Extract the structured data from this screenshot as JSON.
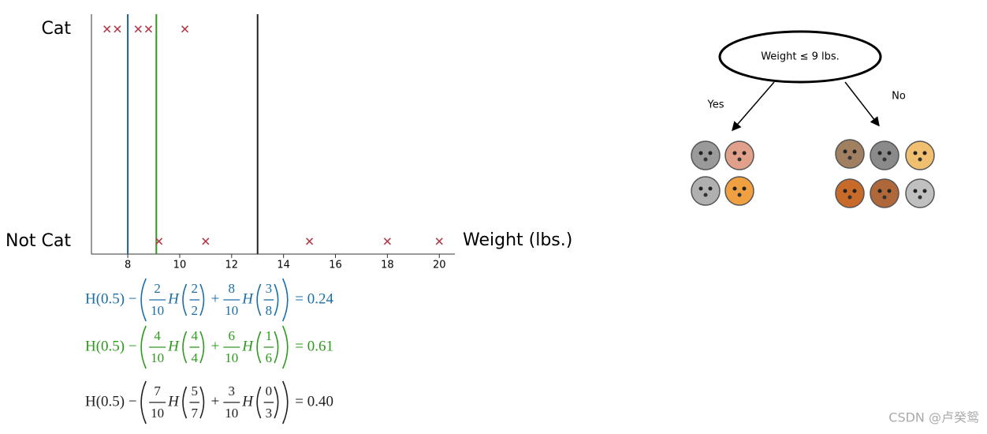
{
  "chart_data": {
    "type": "scatter",
    "x_label": "Weight (lbs.)",
    "x": [
      7.2,
      7.6,
      8.4,
      8.8,
      10.2,
      9.2,
      11.0,
      15.0,
      18.0,
      20.0
    ],
    "values": [
      1,
      1,
      1,
      1,
      1,
      0,
      0,
      0,
      0,
      0
    ],
    "color": "#b03a48",
    "xlim": [
      6.6,
      20.6
    ],
    "xticks": [
      8,
      10,
      12,
      14,
      16,
      18,
      20
    ],
    "ylim": [
      -0.06,
      1.07
    ],
    "yticks": [
      {
        "value": 0,
        "label": "Not Cat"
      },
      {
        "value": 1,
        "label": "Cat"
      }
    ],
    "vlines": [
      {
        "x": 8,
        "color": "#1f5f99"
      },
      {
        "x": 9.1,
        "color": "#2e9a1e"
      },
      {
        "x": 13,
        "color": "#222222"
      }
    ]
  },
  "formulas": [
    {
      "color": "#1a6fa8",
      "lead": "H(0.5) −",
      "terms": [
        {
          "num": "2",
          "den": "10",
          "fn": "H",
          "arg_num": "2",
          "arg_den": "2"
        },
        {
          "num": "8",
          "den": "10",
          "fn": "H",
          "arg_num": "3",
          "arg_den": "8"
        }
      ],
      "join": "+",
      "result": "= 0.24"
    },
    {
      "color": "#2e9a1e",
      "lead": "H(0.5) −",
      "terms": [
        {
          "num": "4",
          "den": "10",
          "fn": "H",
          "arg_num": "4",
          "arg_den": "4"
        },
        {
          "num": "6",
          "den": "10",
          "fn": "H",
          "arg_num": "1",
          "arg_den": "6"
        }
      ],
      "join": "+",
      "result": "= 0.61"
    },
    {
      "color": "#222222",
      "lead": "H(0.5) −",
      "terms": [
        {
          "num": "7",
          "den": "10",
          "fn": "H",
          "arg_num": "5",
          "arg_den": "7"
        },
        {
          "num": "3",
          "den": "10",
          "fn": "H",
          "arg_num": "0",
          "arg_den": "3"
        }
      ],
      "join": "+",
      "result": "= 0.40"
    }
  ],
  "tree": {
    "root": "Weight ≤ 9 lbs.",
    "yes": "Yes",
    "no": "No"
  },
  "watermark": "CSDN @卢癸鸳"
}
